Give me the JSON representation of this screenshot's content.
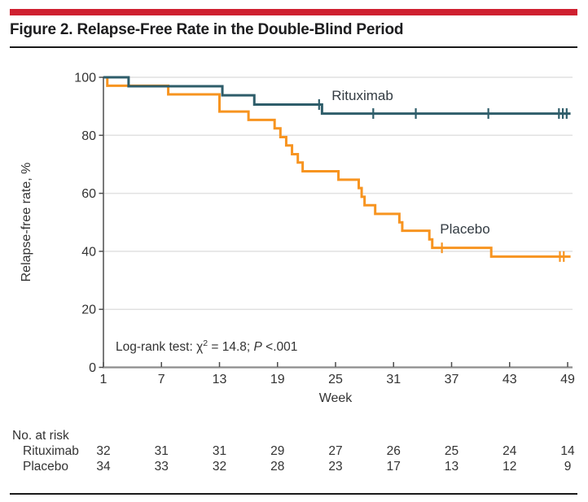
{
  "header": {
    "title": "Figure 2. Relapse-Free Rate in the Double-Blind Period",
    "accent_color": "#CF2030"
  },
  "chart_data": {
    "type": "line",
    "subtype": "kaplan-meier-step",
    "title": "Figure 2. Relapse-Free Rate in the Double-Blind Period",
    "xlabel": "Week",
    "ylabel": "Relapse-free rate, %",
    "x_ticks": [
      1,
      7,
      13,
      19,
      25,
      31,
      37,
      43,
      49
    ],
    "y_ticks": [
      100,
      80,
      60,
      40,
      20,
      0
    ],
    "xlim": [
      1,
      49.5
    ],
    "ylim": [
      0,
      100
    ],
    "grid": "horizontal",
    "annotation": {
      "prefix": "Log-rank test: χ",
      "sup": "2",
      "mid": " = 14.8; ",
      "p_italic": "P",
      "suffix": " <.001"
    },
    "series": [
      {
        "name": "Rituximab",
        "color": "#2E5D6A",
        "steps": [
          [
            1,
            100
          ],
          [
            3.6,
            96.9
          ],
          [
            13.3,
            93.8
          ],
          [
            16.6,
            90.6
          ],
          [
            23.6,
            87.5
          ],
          [
            49.3,
            87.5
          ]
        ],
        "censors": [
          [
            23.3,
            90.6
          ],
          [
            28.9,
            87.5
          ],
          [
            33.3,
            87.5
          ],
          [
            40.8,
            87.5
          ],
          [
            48.1,
            87.5
          ],
          [
            48.5,
            87.5
          ],
          [
            48.9,
            87.5
          ]
        ],
        "label_week": 24.6,
        "label_pct": 92.4
      },
      {
        "name": "Placebo",
        "color": "#F79420",
        "steps": [
          [
            1,
            100
          ],
          [
            1.4,
            97.1
          ],
          [
            7.7,
            94.1
          ],
          [
            13,
            88.2
          ],
          [
            16,
            85.3
          ],
          [
            18.7,
            82.4
          ],
          [
            19.3,
            79.4
          ],
          [
            19.9,
            76.5
          ],
          [
            20.5,
            73.5
          ],
          [
            21.1,
            70.6
          ],
          [
            21.6,
            67.6
          ],
          [
            25.3,
            64.7
          ],
          [
            27.4,
            61.8
          ],
          [
            27.7,
            58.8
          ],
          [
            28,
            55.9
          ],
          [
            29.1,
            52.9
          ],
          [
            31.6,
            50
          ],
          [
            31.9,
            47.1
          ],
          [
            34.7,
            44.1
          ],
          [
            35,
            41.2
          ],
          [
            41.1,
            38.2
          ],
          [
            49.3,
            38.2
          ]
        ],
        "censors": [
          [
            36,
            41.2
          ],
          [
            48.2,
            38.2
          ],
          [
            48.6,
            38.2
          ]
        ],
        "label_week": 35.8,
        "label_pct": 46.4
      }
    ],
    "risk_table": {
      "title": "No. at risk",
      "weeks": [
        1,
        7,
        13,
        19,
        25,
        31,
        37,
        43,
        49
      ],
      "rows": [
        {
          "name": "Rituximab",
          "values": [
            32,
            31,
            31,
            29,
            27,
            26,
            25,
            24,
            14
          ]
        },
        {
          "name": "Placebo",
          "values": [
            34,
            33,
            32,
            28,
            23,
            17,
            13,
            12,
            9
          ]
        }
      ]
    }
  }
}
